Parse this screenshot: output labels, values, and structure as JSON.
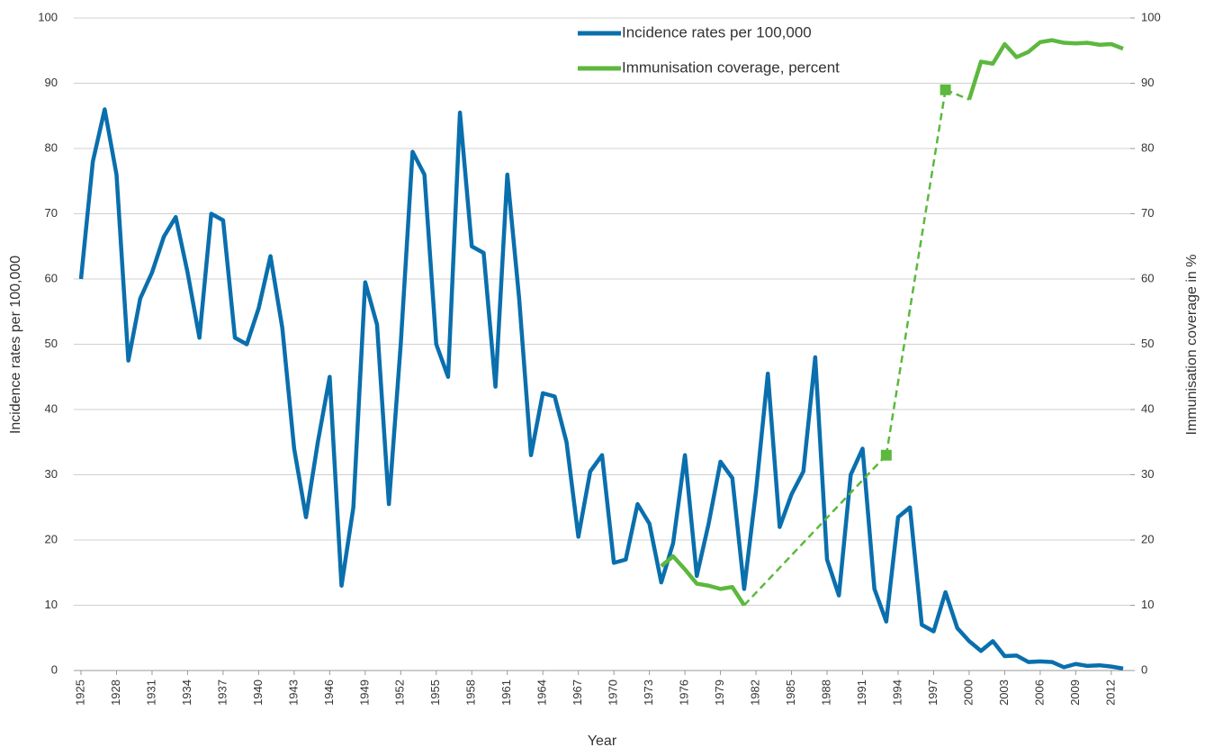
{
  "chart_data": {
    "type": "line",
    "ylabel": "Incidence rates per 100,000",
    "y2label": "Immunisation coverage in %",
    "xlabel": "Year",
    "x": [
      1925,
      1926,
      1927,
      1928,
      1929,
      1930,
      1931,
      1932,
      1933,
      1934,
      1935,
      1936,
      1937,
      1938,
      1939,
      1940,
      1941,
      1942,
      1943,
      1944,
      1945,
      1946,
      1947,
      1948,
      1949,
      1950,
      1951,
      1952,
      1953,
      1954,
      1955,
      1956,
      1957,
      1958,
      1959,
      1960,
      1961,
      1962,
      1963,
      1964,
      1965,
      1966,
      1967,
      1968,
      1969,
      1970,
      1971,
      1972,
      1973,
      1974,
      1975,
      1976,
      1977,
      1978,
      1979,
      1980,
      1981,
      1982,
      1983,
      1984,
      1985,
      1986,
      1987,
      1988,
      1989,
      1990,
      1991,
      1992,
      1993,
      1994,
      1995,
      1996,
      1997,
      1998,
      1999,
      2000,
      2001,
      2002,
      2003,
      2004,
      2005,
      2006,
      2007,
      2008,
      2009,
      2010,
      2011,
      2012,
      2013
    ],
    "series": [
      {
        "name": "Incidence rates per 100,000",
        "color": "#0a6fad",
        "values": [
          60,
          78,
          86,
          76,
          47.5,
          57,
          61,
          66.5,
          69.5,
          61,
          51,
          70,
          69,
          51,
          50,
          55.5,
          63.5,
          52.5,
          34,
          23.5,
          35,
          45,
          13,
          25,
          59.5,
          53,
          25.5,
          50,
          79.5,
          76,
          50,
          45,
          85.5,
          65,
          64,
          43.5,
          76,
          57,
          33,
          42.5,
          42,
          35,
          20.5,
          30.5,
          33,
          16.5,
          17,
          25.5,
          22.5,
          13.5,
          19.5,
          33,
          14.5,
          22.5,
          32,
          29.5,
          12.5,
          27.5,
          45.5,
          22,
          27,
          30.5,
          48,
          17,
          11.5,
          30,
          34,
          12.5,
          7.5,
          23.5,
          25,
          7,
          6,
          12,
          6.5,
          4.5,
          3,
          4.5,
          2.2,
          2.3,
          1.3,
          1.4,
          1.3,
          0.5,
          1,
          0.7,
          0.8,
          0.6,
          0.3
        ]
      },
      {
        "name": "Immunisation coverage, percent",
        "color": "#5cb83e",
        "axis": "y2",
        "values": [
          null,
          null,
          null,
          null,
          null,
          null,
          null,
          null,
          null,
          null,
          null,
          null,
          null,
          null,
          null,
          null,
          null,
          null,
          null,
          null,
          null,
          null,
          null,
          null,
          null,
          null,
          null,
          null,
          null,
          null,
          null,
          null,
          null,
          null,
          null,
          null,
          null,
          null,
          null,
          null,
          null,
          null,
          null,
          null,
          null,
          null,
          null,
          null,
          null,
          16,
          17.5,
          15.5,
          13.3,
          13,
          12.5,
          12.8,
          10,
          null,
          null,
          null,
          null,
          null,
          null,
          null,
          null,
          null,
          null,
          null,
          33,
          null,
          null,
          null,
          null,
          89,
          null,
          87.5,
          93.3,
          93,
          96,
          94,
          94.8,
          96.3,
          96.6,
          96.2,
          96.1,
          96.2,
          95.9,
          96,
          95.3
        ]
      }
    ],
    "xlim": [
      1925,
      2013
    ],
    "xticks": [
      1925,
      1928,
      1931,
      1934,
      1937,
      1940,
      1943,
      1946,
      1949,
      1952,
      1955,
      1958,
      1961,
      1964,
      1967,
      1970,
      1973,
      1976,
      1979,
      1982,
      1985,
      1988,
      1991,
      1994,
      1997,
      2000,
      2003,
      2006,
      2009,
      2012
    ],
    "ylim": [
      0,
      100
    ],
    "yticks": [
      0,
      10,
      20,
      30,
      40,
      50,
      60,
      70,
      80,
      90,
      100
    ],
    "y2lim": [
      0,
      100
    ],
    "y2ticks": [
      0,
      10,
      20,
      30,
      40,
      50,
      60,
      70,
      80,
      90,
      100
    ],
    "grid": true,
    "legend": "top"
  }
}
